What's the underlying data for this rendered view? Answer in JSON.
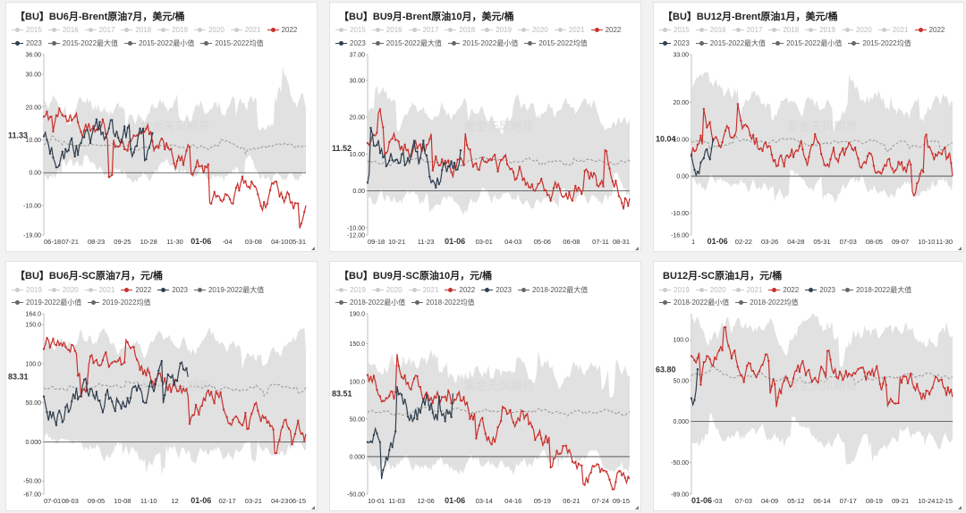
{
  "watermark": "紫金天风期货",
  "colors": {
    "y2022": "#c9302c",
    "y2023": "#2f3e4e",
    "band": "#dcdcdc",
    "avg": "#999999",
    "legend_off": "#cccccc",
    "legend_on_gray": "#666666"
  },
  "chart_data": [
    {
      "type": "line",
      "title": "【BU】BU6月-Brent原油7月，美元/桶",
      "legend_row1": [
        "2015",
        "2016",
        "2017",
        "2018",
        "2019",
        "2020",
        "2021",
        "2022"
      ],
      "legend_row2": [
        "2023",
        "2015-2022最大值",
        "2015-2022最小值",
        "2015-2022均值"
      ],
      "series": [
        {
          "name": "2022",
          "color": "red"
        },
        {
          "name": "2023",
          "color": "dark"
        },
        {
          "name": "2015-2022最大值",
          "color": "band"
        },
        {
          "name": "2015-2022最小值",
          "color": "band"
        },
        {
          "name": "2015-2022均值",
          "color": "avg"
        }
      ],
      "ylim": [
        -19,
        36
      ],
      "yticks": [
        "36.00",
        "30.00",
        "20.00",
        "10.00",
        "0.00",
        "-10.00",
        "-19.00"
      ],
      "ytick_values": [
        36,
        30,
        20,
        10,
        0,
        -10,
        -19
      ],
      "xticks": [
        "06-18",
        "07-21",
        "08-23",
        "09-25",
        "10-28",
        "11-30",
        "01-06",
        "-04",
        "03-08",
        "04-10",
        "05-31"
      ],
      "highlight_x": "01-06",
      "current_value_label": "11.33",
      "current_value": 11.33,
      "red_start": 19,
      "red_end": -10,
      "dark_start": 8,
      "dark_end": 12,
      "dark_end_frac": 0.42,
      "avg_level": 8,
      "band_hi": 22,
      "band_lo": 0,
      "seed": 11
    },
    {
      "type": "line",
      "title": "【BU】BU9月-Brent原油10月，美元/桶",
      "legend_row1": [
        "2015",
        "2016",
        "2017",
        "2018",
        "2019",
        "2020",
        "2021",
        "2022"
      ],
      "legend_row2": [
        "2023",
        "2015-2022最大值",
        "2015-2022最小值",
        "2015-2022均值"
      ],
      "series": [
        {
          "name": "2022",
          "color": "red"
        },
        {
          "name": "2023",
          "color": "dark"
        },
        {
          "name": "2015-2022最大值",
          "color": "band"
        },
        {
          "name": "2015-2022最小值",
          "color": "band"
        },
        {
          "name": "2015-2022均值",
          "color": "avg"
        }
      ],
      "ylim": [
        -12,
        37
      ],
      "yticks": [
        "37.00",
        "30.00",
        "20.00",
        "10.00",
        "0.00",
        "-10.00",
        "-12.00"
      ],
      "ytick_values": [
        37,
        30,
        20,
        10,
        0,
        -10,
        -12
      ],
      "xticks": [
        "09-18",
        "10-21",
        "11-23",
        "01-06",
        "03-01",
        "04-03",
        "05-06",
        "06-08",
        "07-11",
        "08-31"
      ],
      "highlight_x": "01-06",
      "current_value_label": "11.52",
      "current_value": 11.52,
      "red_start": 14,
      "red_end": -2,
      "dark_start": 2,
      "dark_end": 11,
      "dark_end_frac": 0.36,
      "avg_level": 8,
      "band_hi": 22,
      "band_lo": -2,
      "seed": 23
    },
    {
      "type": "line",
      "title": "【BU】BU12月-Brent原油1月，美元/桶",
      "legend_row1": [
        "2015",
        "2016",
        "2017",
        "2018",
        "2019",
        "2020",
        "2021",
        "2022"
      ],
      "legend_row2": [
        "2023",
        "2015-2022最大值",
        "2015-2022最小值",
        "2015-2022均值"
      ],
      "series": [
        {
          "name": "2022",
          "color": "red"
        },
        {
          "name": "2023",
          "color": "dark"
        },
        {
          "name": "2015-2022最大值",
          "color": "band"
        },
        {
          "name": "2015-2022最小值",
          "color": "band"
        },
        {
          "name": "2015-2022均值",
          "color": "avg"
        }
      ],
      "ylim": [
        -16,
        33
      ],
      "yticks": [
        "33.00",
        "20.00",
        "10.00",
        "0.00",
        "-10.00",
        "-16.00"
      ],
      "ytick_values": [
        33,
        20,
        10,
        0,
        -10,
        -16
      ],
      "xticks": [
        "1",
        "01-06",
        "02-22",
        "03-26",
        "04-28",
        "05-31",
        "07-03",
        "08-05",
        "09-07",
        "10-10",
        "11-30"
      ],
      "highlight_x": "01-06",
      "current_value_label": "10.04",
      "current_value": 10.04,
      "red_start": 9,
      "red_end": 0,
      "dark_start": 7,
      "dark_end": 10,
      "dark_end_frac": 0.09,
      "avg_level": 9,
      "band_hi": 22,
      "band_lo": -2,
      "seed": 37
    },
    {
      "type": "line",
      "title": "【BU】BU6月-SC原油7月，元/桶",
      "legend_row1": [
        "2019",
        "2020",
        "2021",
        "2022",
        "2023",
        "2019-2022最大值"
      ],
      "legend_row2": [
        "2019-2022最小值",
        "2019-2022均值"
      ],
      "series": [
        {
          "name": "2022",
          "color": "red"
        },
        {
          "name": "2023",
          "color": "dark"
        },
        {
          "name": "2019-2022最大值",
          "color": "band"
        },
        {
          "name": "2019-2022最小值",
          "color": "band"
        },
        {
          "name": "2019-2022均值",
          "color": "avg"
        }
      ],
      "ylim": [
        -67,
        164
      ],
      "yticks": [
        "164.0",
        "150.0",
        "100.0",
        "50.00",
        "0.000",
        "-50.00",
        "-67.00"
      ],
      "ytick_values": [
        164,
        150,
        100,
        50,
        0,
        -50,
        -67
      ],
      "xticks": [
        "07-01",
        "08-03",
        "09-05",
        "10-08",
        "11-10",
        "12",
        "01-06",
        "02-17",
        "03-21",
        "04-23",
        "06-15"
      ],
      "highlight_x": "01-06",
      "current_value_label": "83.31",
      "current_value": 83.31,
      "red_start": 120,
      "red_end": 10,
      "dark_start": 50,
      "dark_end": 83,
      "dark_end_frac": 0.55,
      "avg_level": 70,
      "band_hi": 130,
      "band_lo": -10,
      "seed": 41
    },
    {
      "type": "line",
      "title": "【BU】BU9月-SC原油10月，元/桶",
      "legend_row1": [
        "2019",
        "2020",
        "2021",
        "2022",
        "2023",
        "2018-2022最大值"
      ],
      "legend_row2": [
        "2018-2022最小值",
        "2018-2022均值"
      ],
      "series": [
        {
          "name": "2022",
          "color": "red"
        },
        {
          "name": "2023",
          "color": "dark"
        },
        {
          "name": "2018-2022最大值",
          "color": "band"
        },
        {
          "name": "2018-2022最小值",
          "color": "band"
        },
        {
          "name": "2018-2022均值",
          "color": "avg"
        }
      ],
      "ylim": [
        -50,
        190
      ],
      "yticks": [
        "190.0",
        "150.0",
        "100.0",
        "50.00",
        "0.000",
        "-50.00"
      ],
      "ytick_values": [
        190,
        150,
        100,
        50,
        0,
        -50
      ],
      "xticks": [
        "10-01",
        "11-03",
        "12-06",
        "01-06",
        "03-14",
        "04-16",
        "05-19",
        "06-21",
        "07-24",
        "09-15"
      ],
      "highlight_x": "01-06",
      "current_value_label": "83.51",
      "current_value": 83.51,
      "red_start": 100,
      "red_end": -30,
      "dark_start": 30,
      "dark_end": 84,
      "dark_end_frac": 0.33,
      "avg_level": 60,
      "band_hi": 120,
      "band_lo": -10,
      "seed": 53
    },
    {
      "type": "line",
      "title": "BU12月-SC原油1月，元/桶",
      "legend_row1": [
        "2019",
        "2020",
        "2021",
        "2022",
        "2023",
        "2018-2022最大值"
      ],
      "legend_row2": [
        "2018-2022最小值",
        "2018-2022均值"
      ],
      "series": [
        {
          "name": "2022",
          "color": "red"
        },
        {
          "name": "2023",
          "color": "dark"
        },
        {
          "name": "2018-2022最大值",
          "color": "band"
        },
        {
          "name": "2018-2022最小值",
          "color": "band"
        },
        {
          "name": "2018-2022均值",
          "color": "avg"
        }
      ],
      "ylim": [
        -89,
        132
      ],
      "yticks": [
        "100.0",
        "50.00",
        "0.000",
        "-50.00",
        "-89.00"
      ],
      "ytick_values": [
        100,
        50,
        0,
        -50,
        -89
      ],
      "xticks": [
        "01-06",
        "-03",
        "07-03",
        "04-09",
        "05-12",
        "06-14",
        "07-17",
        "08-19",
        "09-21",
        "10-24",
        "12-15"
      ],
      "highlight_x": "01-06",
      "current_value_label": "63.80",
      "current_value": 63.8,
      "red_start": 85,
      "red_end": 30,
      "dark_start": 40,
      "dark_end": 64,
      "dark_end_frac": 0.03,
      "avg_level": 55,
      "band_hi": 115,
      "band_lo": -20,
      "seed": 67
    }
  ]
}
